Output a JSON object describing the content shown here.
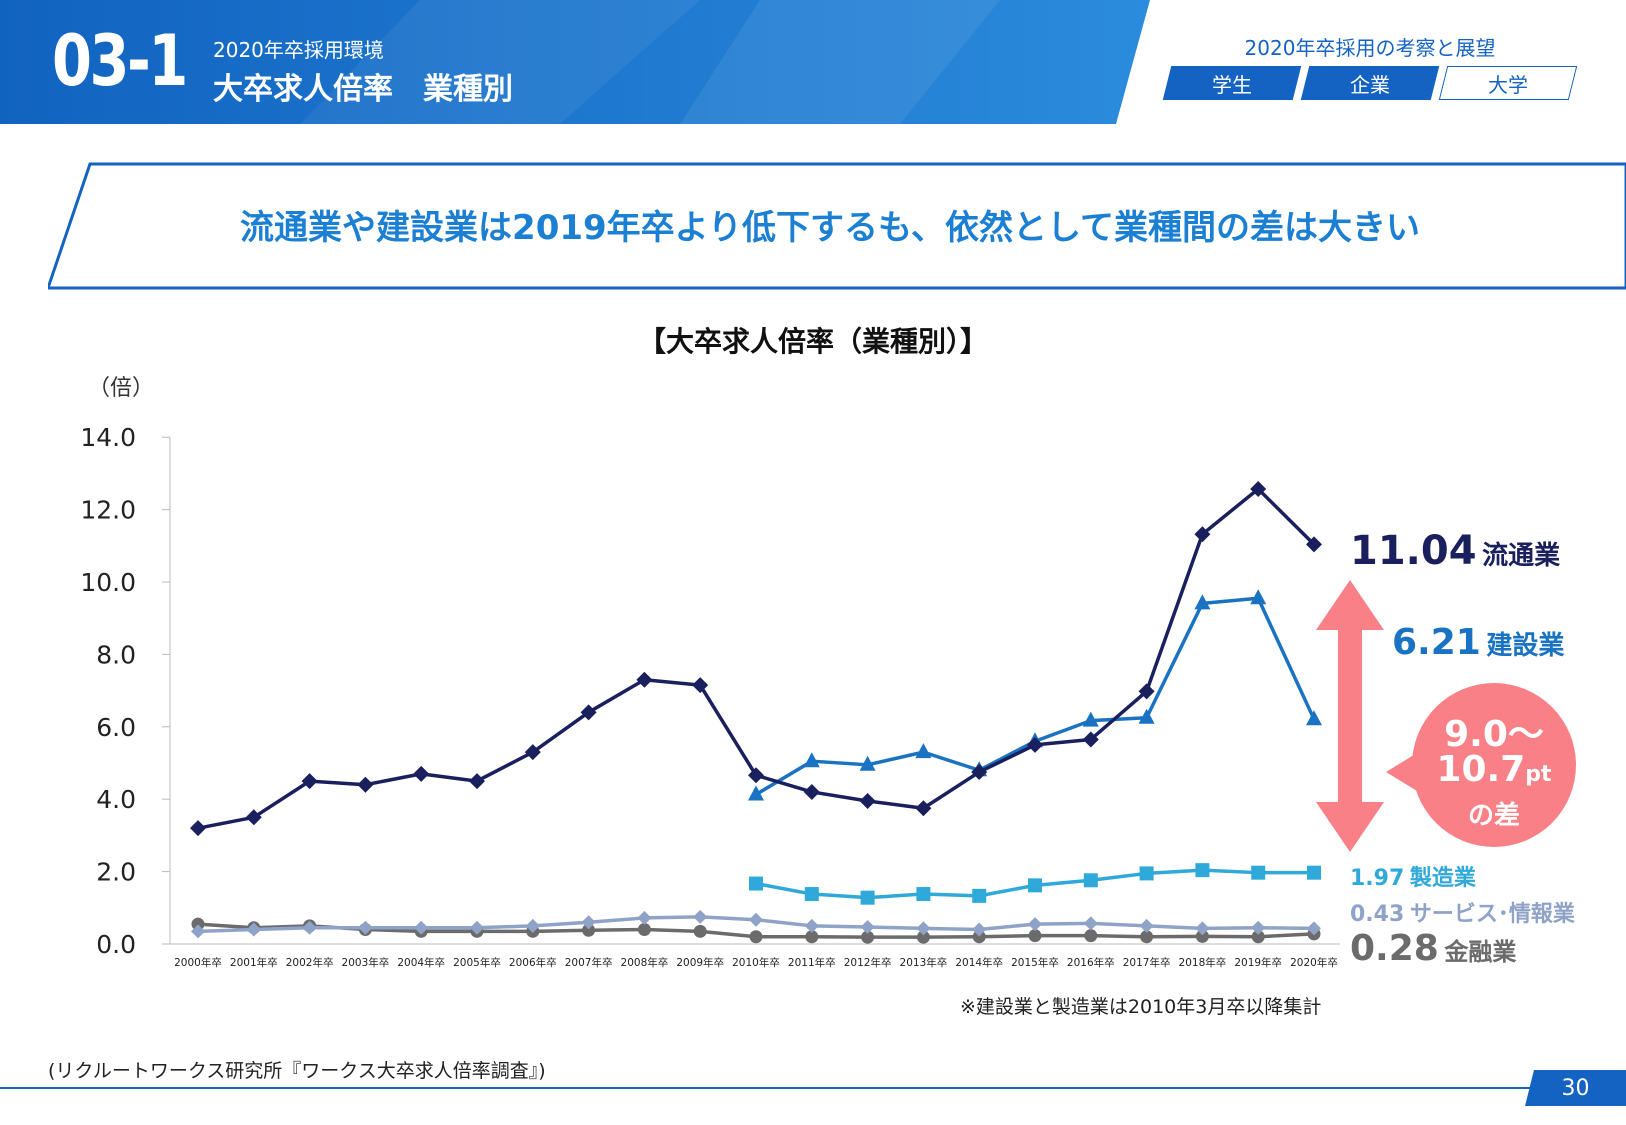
{
  "header": {
    "section_number": "03-1",
    "subtitle": "2020年卒採用環境",
    "title": "大卒求人倍率　業種別",
    "nav_title": "2020年卒採用の考察と展望",
    "nav_tabs": [
      "学生",
      "企業",
      "大学"
    ]
  },
  "banner": {
    "text": "流通業や建設業は2019年卒より低下するも、依然として業種間の差は大きい"
  },
  "annotations": {
    "ryutsu_value": "11.04",
    "ryutsu_label": "流通業",
    "kensetsu_value": "6.21",
    "kensetsu_label": "建設業",
    "seizo_value": "1.97",
    "seizo_label": "製造業",
    "service_value": "0.43",
    "service_label": "サービス･情報業",
    "kinyu_value": "0.28",
    "kinyu_label": "金融業",
    "gap_line1": "9.0～",
    "gap_line2": "10.7",
    "gap_unit": "pt",
    "gap_line3": "の差"
  },
  "note": "※建設業と製造業は2010年3月卒以降集計",
  "source": "(リクルートワークス研究所『ワークス大卒求人倍率調査』)",
  "page_number": "30",
  "colors": {
    "brand": "#1463c3",
    "ryutsu": "#1a1f5e",
    "kensetsu": "#1a73c2",
    "seizo": "#2fa9d9",
    "service": "#8fa3c8",
    "kinyu": "#6b6b6b",
    "gap_arrow": "#f88086"
  },
  "chart_data": {
    "type": "line",
    "title": "【大卒求人倍率（業種別）】",
    "ylabel": "（倍）",
    "ylim": [
      0,
      14
    ],
    "yticks": [
      "0.0",
      "2.0",
      "4.0",
      "6.0",
      "8.0",
      "10.0",
      "12.0",
      "14.0"
    ],
    "categories": [
      "2000年卒",
      "2001年卒",
      "2002年卒",
      "2003年卒",
      "2004年卒",
      "2005年卒",
      "2006年卒",
      "2007年卒",
      "2008年卒",
      "2009年卒",
      "2010年卒",
      "2011年卒",
      "2012年卒",
      "2013年卒",
      "2014年卒",
      "2015年卒",
      "2016年卒",
      "2017年卒",
      "2018年卒",
      "2019年卒",
      "2020年卒"
    ],
    "series": [
      {
        "name": "流通業",
        "marker": "diamond",
        "color": "#1a1f5e",
        "values": [
          3.2,
          3.5,
          4.5,
          4.4,
          4.7,
          4.5,
          5.3,
          6.4,
          7.3,
          7.15,
          4.66,
          4.2,
          3.95,
          3.75,
          4.75,
          5.5,
          5.65,
          6.98,
          11.32,
          12.57,
          11.04
        ]
      },
      {
        "name": "建設業",
        "marker": "triangle",
        "color": "#1a73c2",
        "values": [
          null,
          null,
          null,
          null,
          null,
          null,
          null,
          null,
          null,
          null,
          4.13,
          5.05,
          4.95,
          5.3,
          4.8,
          5.6,
          6.17,
          6.25,
          9.41,
          9.55,
          6.21
        ]
      },
      {
        "name": "製造業",
        "marker": "square",
        "color": "#2fa9d9",
        "values": [
          null,
          null,
          null,
          null,
          null,
          null,
          null,
          null,
          null,
          null,
          1.67,
          1.38,
          1.28,
          1.38,
          1.33,
          1.62,
          1.76,
          1.95,
          2.04,
          1.97,
          1.97
        ]
      },
      {
        "name": "サービス･情報業",
        "marker": "diamond",
        "color": "#8fa3c8",
        "values": [
          0.35,
          0.4,
          0.45,
          0.45,
          0.45,
          0.45,
          0.5,
          0.6,
          0.72,
          0.75,
          0.67,
          0.5,
          0.47,
          0.43,
          0.4,
          0.55,
          0.57,
          0.5,
          0.43,
          0.45,
          0.43
        ]
      },
      {
        "name": "金融業",
        "marker": "circle",
        "color": "#6b6b6b",
        "values": [
          0.55,
          0.45,
          0.5,
          0.4,
          0.35,
          0.35,
          0.35,
          0.38,
          0.4,
          0.35,
          0.2,
          0.2,
          0.19,
          0.19,
          0.2,
          0.23,
          0.23,
          0.2,
          0.21,
          0.2,
          0.28
        ]
      }
    ]
  }
}
